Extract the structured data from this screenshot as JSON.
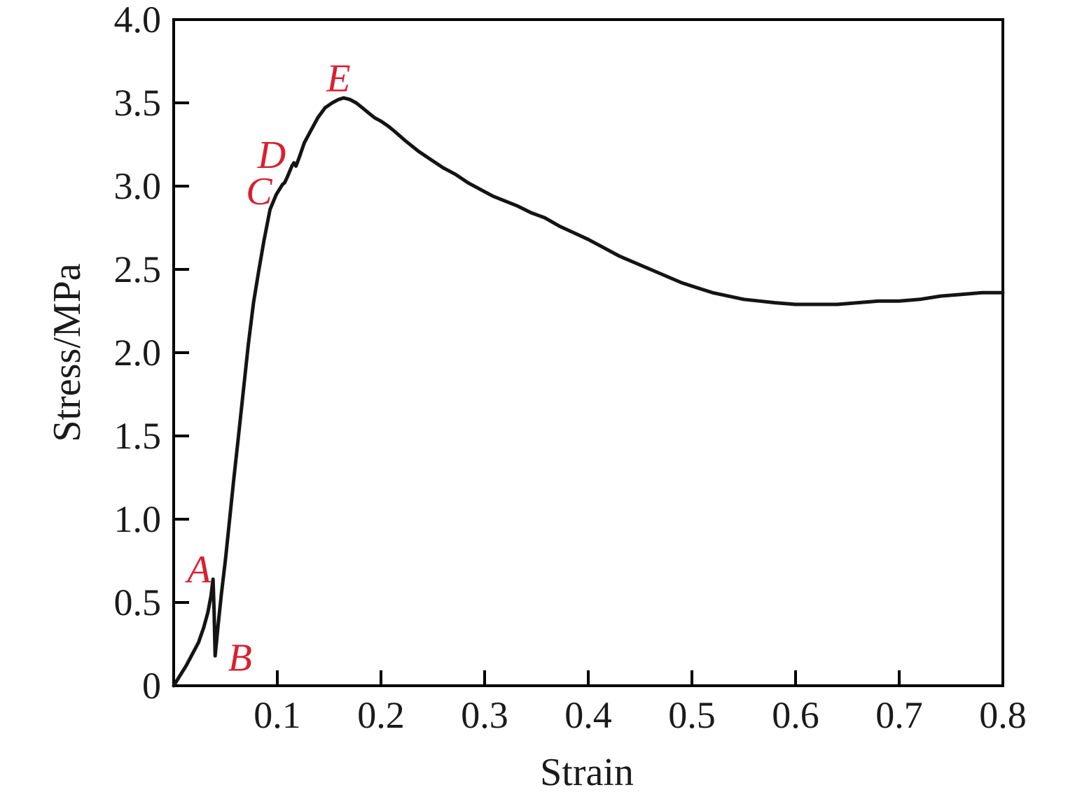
{
  "chart_data": {
    "type": "line",
    "title": "",
    "xlabel": "Strain",
    "ylabel": "Stress/MPa",
    "xlim": [
      0,
      0.8
    ],
    "ylim": [
      0,
      4.0
    ],
    "grid": false,
    "legend": "none",
    "axis_color": "#000000",
    "curve_color": "#141414",
    "annotation_color": "#d92030",
    "x_ticks": [
      {
        "v": 0.1,
        "label": "0.1"
      },
      {
        "v": 0.2,
        "label": "0.2"
      },
      {
        "v": 0.3,
        "label": "0.3"
      },
      {
        "v": 0.4,
        "label": "0.4"
      },
      {
        "v": 0.5,
        "label": "0.5"
      },
      {
        "v": 0.6,
        "label": "0.6"
      },
      {
        "v": 0.7,
        "label": "0.7"
      },
      {
        "v": 0.8,
        "label": "0.8"
      }
    ],
    "y_ticks": [
      {
        "v": 0.0,
        "label": "0"
      },
      {
        "v": 0.5,
        "label": "0.5"
      },
      {
        "v": 1.0,
        "label": "1.0"
      },
      {
        "v": 1.5,
        "label": "1.5"
      },
      {
        "v": 2.0,
        "label": "2.0"
      },
      {
        "v": 2.5,
        "label": "2.5"
      },
      {
        "v": 3.0,
        "label": "3.0"
      },
      {
        "v": 3.5,
        "label": "3.5"
      },
      {
        "v": 4.0,
        "label": "4.0"
      }
    ],
    "series": [
      {
        "name": "stress-strain-curve",
        "points": [
          [
            0.0,
            0.0
          ],
          [
            0.006,
            0.06
          ],
          [
            0.012,
            0.12
          ],
          [
            0.018,
            0.19
          ],
          [
            0.024,
            0.26
          ],
          [
            0.029,
            0.35
          ],
          [
            0.033,
            0.44
          ],
          [
            0.036,
            0.54
          ],
          [
            0.038,
            0.64
          ],
          [
            0.039,
            0.45
          ],
          [
            0.04,
            0.18
          ],
          [
            0.043,
            0.37
          ],
          [
            0.046,
            0.55
          ],
          [
            0.05,
            0.76
          ],
          [
            0.054,
            1.0
          ],
          [
            0.058,
            1.24
          ],
          [
            0.062,
            1.47
          ],
          [
            0.067,
            1.76
          ],
          [
            0.072,
            2.05
          ],
          [
            0.077,
            2.3
          ],
          [
            0.082,
            2.49
          ],
          [
            0.087,
            2.67
          ],
          [
            0.093,
            2.86
          ],
          [
            0.099,
            2.95
          ],
          [
            0.103,
            2.99
          ],
          [
            0.105,
            3.01
          ],
          [
            0.107,
            3.02
          ],
          [
            0.11,
            3.06
          ],
          [
            0.114,
            3.12
          ],
          [
            0.116,
            3.14
          ],
          [
            0.118,
            3.12
          ],
          [
            0.121,
            3.17
          ],
          [
            0.126,
            3.26
          ],
          [
            0.132,
            3.33
          ],
          [
            0.139,
            3.41
          ],
          [
            0.146,
            3.47
          ],
          [
            0.153,
            3.5
          ],
          [
            0.159,
            3.52
          ],
          [
            0.164,
            3.53
          ],
          [
            0.17,
            3.52
          ],
          [
            0.176,
            3.5
          ],
          [
            0.182,
            3.47
          ],
          [
            0.188,
            3.44
          ],
          [
            0.194,
            3.41
          ],
          [
            0.2,
            3.39
          ],
          [
            0.207,
            3.36
          ],
          [
            0.213,
            3.33
          ],
          [
            0.224,
            3.27
          ],
          [
            0.236,
            3.21
          ],
          [
            0.248,
            3.16
          ],
          [
            0.26,
            3.11
          ],
          [
            0.272,
            3.07
          ],
          [
            0.284,
            3.02
          ],
          [
            0.296,
            2.98
          ],
          [
            0.308,
            2.94
          ],
          [
            0.32,
            2.91
          ],
          [
            0.332,
            2.88
          ],
          [
            0.345,
            2.84
          ],
          [
            0.358,
            2.81
          ],
          [
            0.372,
            2.76
          ],
          [
            0.386,
            2.72
          ],
          [
            0.4,
            2.68
          ],
          [
            0.415,
            2.63
          ],
          [
            0.43,
            2.58
          ],
          [
            0.445,
            2.54
          ],
          [
            0.46,
            2.5
          ],
          [
            0.475,
            2.46
          ],
          [
            0.49,
            2.42
          ],
          [
            0.505,
            2.39
          ],
          [
            0.52,
            2.36
          ],
          [
            0.535,
            2.34
          ],
          [
            0.55,
            2.32
          ],
          [
            0.565,
            2.31
          ],
          [
            0.58,
            2.3
          ],
          [
            0.6,
            2.29
          ],
          [
            0.62,
            2.29
          ],
          [
            0.64,
            2.29
          ],
          [
            0.66,
            2.3
          ],
          [
            0.68,
            2.31
          ],
          [
            0.7,
            2.31
          ],
          [
            0.72,
            2.32
          ],
          [
            0.74,
            2.34
          ],
          [
            0.76,
            2.35
          ],
          [
            0.78,
            2.36
          ],
          [
            0.8,
            2.36
          ]
        ]
      }
    ],
    "annotations": [
      {
        "label": "A",
        "x": 0.0245,
        "y": 0.7
      },
      {
        "label": "B",
        "x": 0.064,
        "y": 0.17
      },
      {
        "label": "C",
        "x": 0.0824,
        "y": 2.97
      },
      {
        "label": "D",
        "x": 0.0946,
        "y": 3.19
      },
      {
        "label": "E",
        "x": 0.159,
        "y": 3.65
      }
    ]
  }
}
